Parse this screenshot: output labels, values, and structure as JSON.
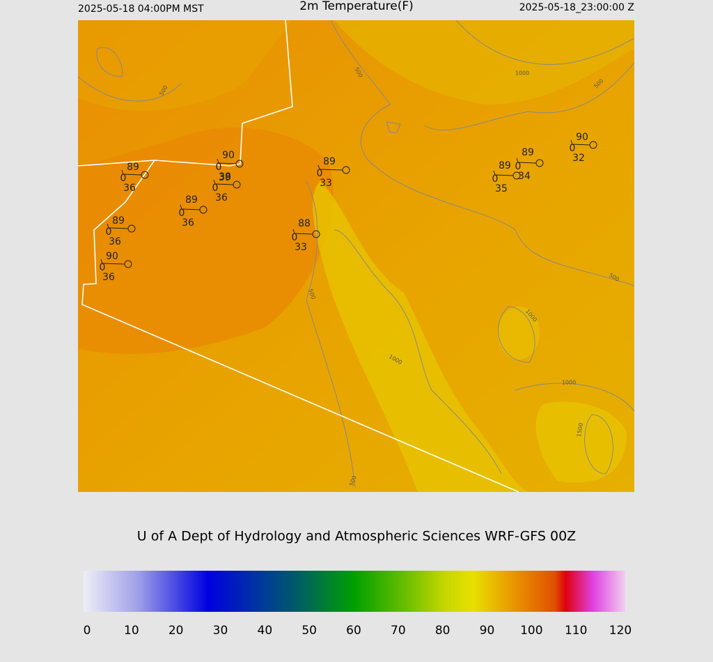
{
  "header": {
    "left": "2025-05-18 04:00PM MST",
    "title": "2m Temperature(F)",
    "right": "2025-05-18_23:00:00 Z"
  },
  "stations": [
    {
      "temp": 89,
      "marker": 0,
      "dewpoint": 36
    },
    {
      "temp": 90,
      "marker": 0,
      "dewpoint": 38
    },
    {
      "temp": 39,
      "marker": 0,
      "dewpoint": 36
    },
    {
      "temp": 89,
      "marker": 0,
      "dewpoint": 36
    },
    {
      "temp": 89,
      "marker": 0,
      "dewpoint": 36
    },
    {
      "temp": 90,
      "marker": 0,
      "dewpoint": 36
    },
    {
      "temp": 88,
      "marker": 0,
      "dewpoint": 33
    },
    {
      "temp": 89,
      "marker": 0,
      "dewpoint": 33
    },
    {
      "temp": 89,
      "marker": 0,
      "dewpoint": 35
    },
    {
      "temp": 89,
      "marker": 0,
      "dewpoint": 34
    },
    {
      "temp": 90,
      "marker": 0,
      "dewpoint": 32
    }
  ],
  "contour_labels": [
    500,
    1000,
    500,
    500,
    500,
    1000,
    1000,
    1000,
    1500,
    500,
    500
  ],
  "footer": "U of A Dept of Hydrology and Atmospheric Sciences WRF-GFS 00Z",
  "colorbar": {
    "ticks": [
      0,
      10,
      20,
      30,
      40,
      50,
      60,
      70,
      80,
      90,
      100,
      110,
      120
    ]
  }
}
